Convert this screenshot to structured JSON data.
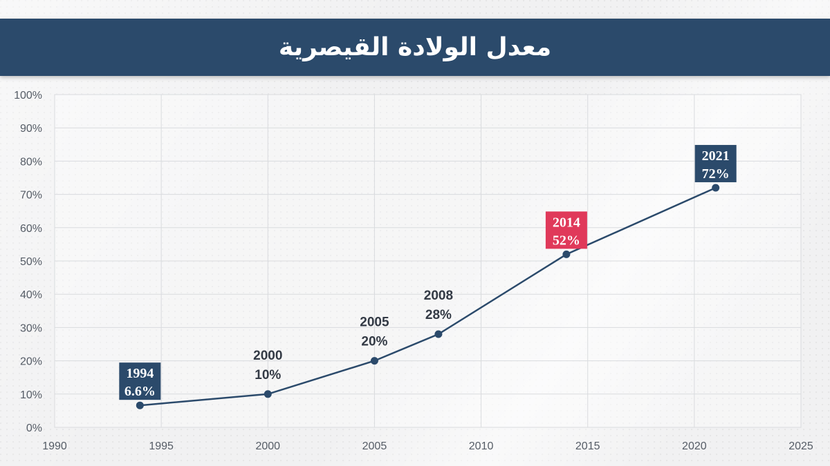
{
  "header": {
    "title": "معدل الولادة القيصرية"
  },
  "colors": {
    "header_bg": "#2b4a6b",
    "line": "#2b4a6b",
    "label_box": "#2b4a6b",
    "highlight_box": "#e0395a"
  },
  "chart_data": {
    "type": "line",
    "title": "معدل الولادة القيصرية",
    "xlabel": "",
    "ylabel": "",
    "xlim": [
      1990,
      2025
    ],
    "ylim": [
      0,
      100
    ],
    "x_ticks": [
      "1990",
      "1995",
      "2000",
      "2005",
      "2010",
      "2015",
      "2020",
      "2025"
    ],
    "y_ticks": [
      "0%",
      "10%",
      "20%",
      "30%",
      "40%",
      "50%",
      "60%",
      "70%",
      "80%",
      "90%",
      "100%"
    ],
    "grid": true,
    "series": [
      {
        "points": [
          {
            "x": 1994,
            "y": 6.6,
            "label_year": "1994",
            "label_value": "6.6%",
            "style": "box"
          },
          {
            "x": 2000,
            "y": 10,
            "label_year": "2000",
            "label_value": "10%",
            "style": "plain"
          },
          {
            "x": 2005,
            "y": 20,
            "label_year": "2005",
            "label_value": "20%",
            "style": "plain"
          },
          {
            "x": 2008,
            "y": 28,
            "label_year": "2008",
            "label_value": "28%",
            "style": "plain"
          },
          {
            "x": 2014,
            "y": 52,
            "label_year": "2014",
            "label_value": "52%",
            "style": "highlight"
          },
          {
            "x": 2021,
            "y": 72,
            "label_year": "2021",
            "label_value": "72%",
            "style": "box"
          }
        ]
      }
    ]
  }
}
